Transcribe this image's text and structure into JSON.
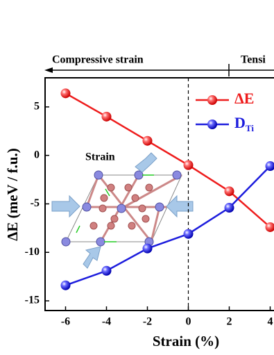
{
  "chart_data": {
    "type": "line",
    "top_annotations": [
      "Compressive strain",
      "Tensi"
    ],
    "inset_label": "Strain",
    "xlabel": "Strain (%)",
    "ylabel": "ΔE (meV / f.u.)",
    "x": [
      -6,
      -4,
      -2,
      0,
      2,
      4
    ],
    "series": [
      {
        "name": "ΔE",
        "color": "#ee1c1c",
        "values": [
          6.4,
          4.0,
          1.5,
          -1.0,
          -3.7,
          -7.4
        ]
      },
      {
        "name": "D",
        "subscript": "Ti",
        "color": "#1c1cdd",
        "values": [
          -13.4,
          -11.9,
          -9.6,
          -8.1,
          -5.4,
          -1.1
        ]
      }
    ],
    "xlim": [
      -7,
      5
    ],
    "xticks": [
      -6,
      -4,
      -2,
      0,
      2,
      4
    ],
    "ylim": [
      -16,
      8
    ],
    "yticks": [
      5,
      0,
      -5,
      -10,
      -15
    ],
    "vline": 0
  }
}
